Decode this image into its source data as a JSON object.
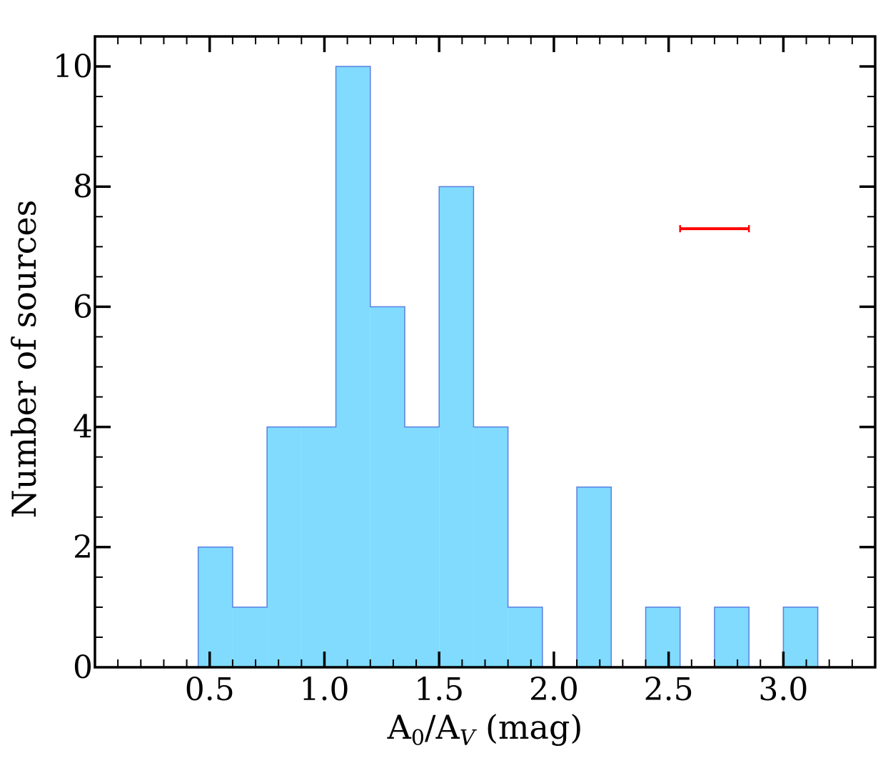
{
  "chart_data": {
    "type": "histogram",
    "title": "",
    "xlabel": {
      "base1": "A",
      "sub1": "0",
      "slash": "/",
      "base2": "A",
      "sub2": "V",
      "unit": " (mag)"
    },
    "ylabel": "Number of sources",
    "xlim": [
      0.0,
      3.4
    ],
    "ylim": [
      0,
      10.5
    ],
    "x_ticks": [
      "0.5",
      "1.0",
      "1.5",
      "2.0",
      "2.5",
      "3.0"
    ],
    "y_ticks": [
      "0",
      "2",
      "4",
      "6",
      "8",
      "10"
    ],
    "bin_edges": [
      0.45,
      0.6,
      0.75,
      0.9,
      1.05,
      1.2,
      1.35,
      1.5,
      1.65,
      1.8,
      1.95,
      2.1,
      2.25,
      2.4,
      2.55,
      2.7,
      2.85,
      3.0,
      3.15
    ],
    "counts": [
      2,
      1,
      4,
      4,
      10,
      6,
      4,
      8,
      4,
      1,
      0,
      3,
      0,
      1,
      0,
      1,
      0,
      1
    ],
    "error_bar": {
      "x_center": 2.7,
      "x_low": 2.55,
      "x_high": 2.85,
      "y": 7.3
    },
    "colors": {
      "fill": "#80dbff",
      "edge": "#5b7fe0",
      "error_bar": "#ff0000",
      "axes": "#000000"
    },
    "grid": false,
    "legend": "none"
  }
}
